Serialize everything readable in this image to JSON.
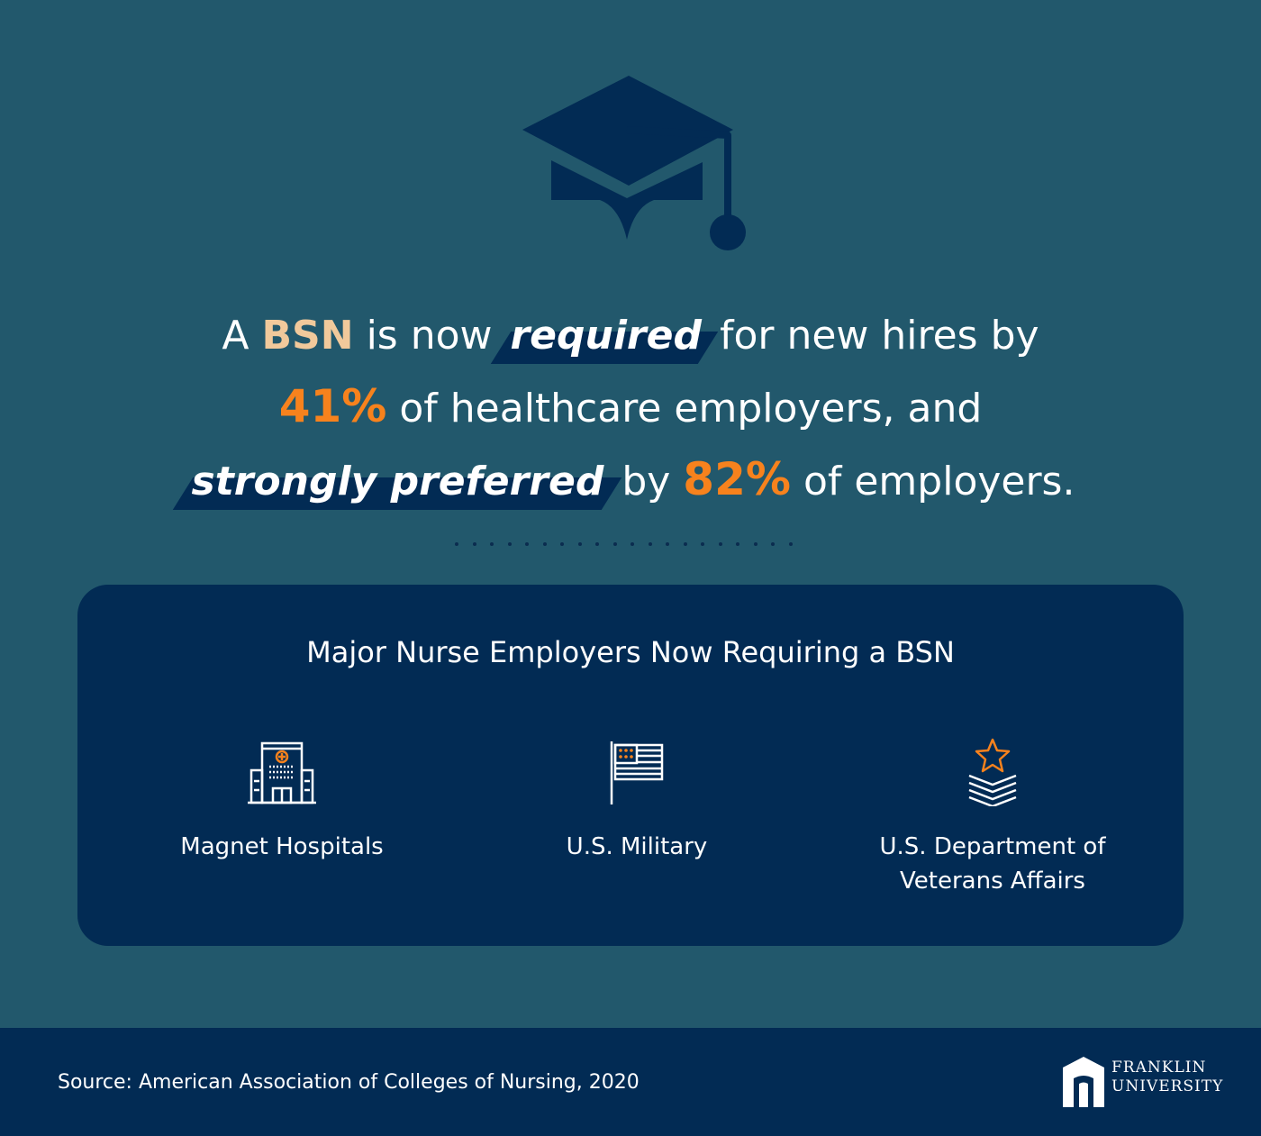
{
  "colors": {
    "background": "#22586c",
    "navy": "#022b54",
    "orange": "#f7821d",
    "peach": "#f1c99b",
    "white": "#ffffff"
  },
  "icons": {
    "top": "graduation-cap-icon",
    "employer1": "hospital-icon",
    "employer2": "flag-icon",
    "employer3": "star-chevron-icon",
    "logo": "franklin-arch-icon"
  },
  "headline": {
    "l1_a": "A ",
    "l1_bsn": "BSN",
    "l1_b": " is now ",
    "l1_required": "required",
    "l1_c": " for new hires by",
    "l2_pct": "41%",
    "l2_rest": " of healthcare employers, and",
    "l3_preferred": "strongly preferred",
    "l3_by": " by ",
    "l3_pct": "82%",
    "l3_rest": " of employers."
  },
  "panel": {
    "title": "Major Nurse Employers Now Requiring a BSN",
    "employers": [
      {
        "line1": "Magnet Hospitals",
        "line2": ""
      },
      {
        "line1": "U.S. Military",
        "line2": ""
      },
      {
        "line1": "U.S. Department of",
        "line2": "Veterans Affairs"
      }
    ]
  },
  "footer": {
    "source": "Source: American Association of Colleges of Nursing, 2020",
    "logo_line1": "FRANKLIN",
    "logo_line2": "UNIVERSITY"
  }
}
